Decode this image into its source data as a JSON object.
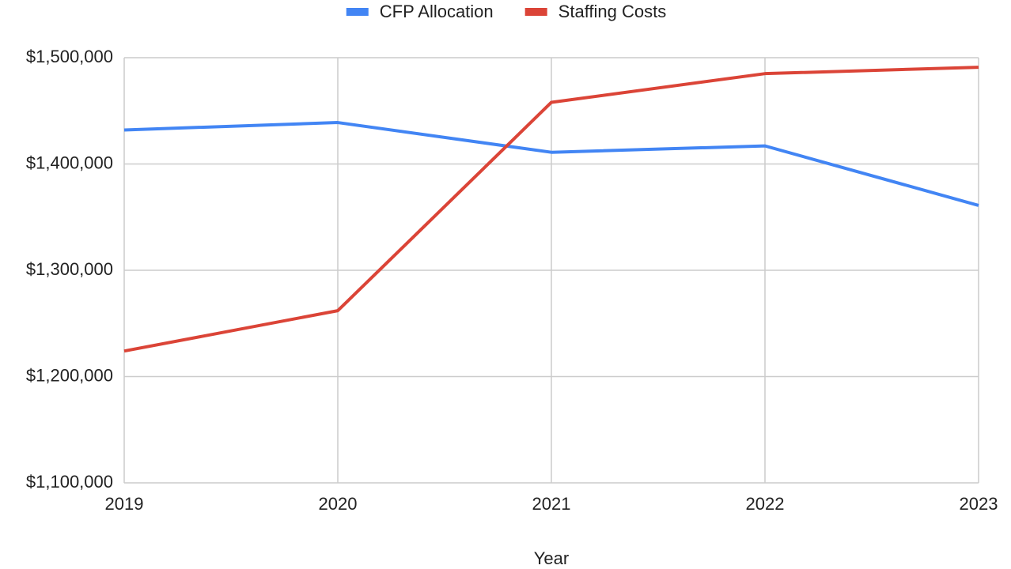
{
  "chart_data": {
    "type": "line",
    "x": [
      2019,
      2020,
      2021,
      2022,
      2023
    ],
    "xlim": [
      2019,
      2023
    ],
    "xticks": [
      2019,
      2020,
      2021,
      2022,
      2023
    ],
    "xlabel": "Year",
    "series": [
      {
        "name": "CFP Allocation",
        "color": "#4285f4",
        "values": [
          1432000,
          1439000,
          1411000,
          1417000,
          1361000
        ]
      },
      {
        "name": "Staffing Costs",
        "color": "#db4437",
        "values": [
          1224000,
          1262000,
          1458000,
          1485000,
          1491000
        ]
      }
    ],
    "ylim": [
      1100000,
      1500000
    ],
    "yticks": [
      {
        "value": 1100000,
        "label": "$1,100,000"
      },
      {
        "value": 1200000,
        "label": "$1,200,000"
      },
      {
        "value": 1300000,
        "label": "$1,300,000"
      },
      {
        "value": 1400000,
        "label": "$1,400,000"
      },
      {
        "value": 1500000,
        "label": "$1,500,000"
      }
    ],
    "grid": true,
    "legend": "top"
  }
}
